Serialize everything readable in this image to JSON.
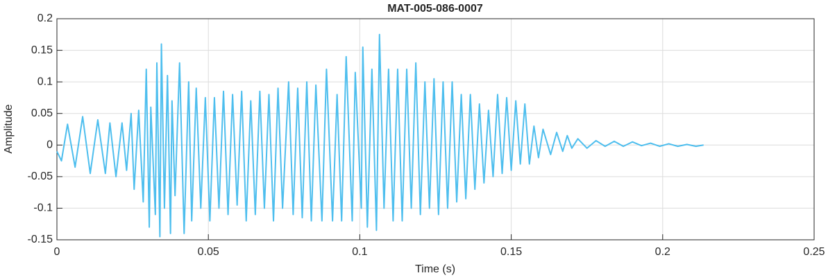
{
  "chart_data": {
    "type": "line",
    "title": "MAT-005-086-0007",
    "x_label": "Time (s)",
    "y_label": "Amplitude",
    "color": "#4dbeee",
    "grid": true,
    "xlim": [
      0,
      0.25
    ],
    "xticks": [
      0,
      0.05,
      0.1,
      0.15,
      0.2,
      0.25
    ],
    "ylim": [
      -0.15,
      0.2
    ],
    "yticks": [
      -0.15,
      -0.1,
      -0.05,
      0,
      0.05,
      0.1,
      0.15,
      0.2
    ],
    "x": [
      0.0,
      0.0015,
      0.0035,
      0.006,
      0.0085,
      0.011,
      0.0135,
      0.016,
      0.0175,
      0.0195,
      0.0215,
      0.023,
      0.0245,
      0.0255,
      0.027,
      0.0285,
      0.0295,
      0.0305,
      0.031,
      0.0325,
      0.033,
      0.034,
      0.0345,
      0.0355,
      0.0365,
      0.0375,
      0.038,
      0.039,
      0.0405,
      0.042,
      0.0435,
      0.0445,
      0.046,
      0.0475,
      0.049,
      0.0505,
      0.052,
      0.0535,
      0.055,
      0.0565,
      0.058,
      0.0595,
      0.061,
      0.0625,
      0.064,
      0.0655,
      0.067,
      0.0685,
      0.07,
      0.0715,
      0.073,
      0.0745,
      0.0765,
      0.078,
      0.0795,
      0.081,
      0.0825,
      0.084,
      0.0855,
      0.0875,
      0.089,
      0.091,
      0.0925,
      0.094,
      0.0955,
      0.0975,
      0.0985,
      0.1005,
      0.101,
      0.1025,
      0.104,
      0.1055,
      0.1065,
      0.108,
      0.1095,
      0.111,
      0.1125,
      0.114,
      0.1155,
      0.117,
      0.1185,
      0.12,
      0.1215,
      0.123,
      0.1245,
      0.126,
      0.1275,
      0.129,
      0.1305,
      0.132,
      0.1335,
      0.135,
      0.1365,
      0.138,
      0.1395,
      0.141,
      0.1425,
      0.144,
      0.1455,
      0.147,
      0.1485,
      0.15,
      0.1515,
      0.153,
      0.1545,
      0.156,
      0.1575,
      0.159,
      0.1605,
      0.163,
      0.165,
      0.167,
      0.1685,
      0.17,
      0.172,
      0.175,
      0.178,
      0.181,
      0.184,
      0.187,
      0.19,
      0.193,
      0.196,
      0.199,
      0.202,
      0.205,
      0.208,
      0.211,
      0.2135
    ],
    "values": [
      -0.01,
      -0.025,
      0.033,
      -0.035,
      0.045,
      -0.045,
      0.04,
      -0.045,
      0.035,
      -0.05,
      0.035,
      -0.04,
      0.05,
      -0.07,
      0.055,
      -0.09,
      0.12,
      -0.13,
      0.06,
      -0.11,
      0.13,
      -0.145,
      0.16,
      -0.1,
      0.11,
      -0.14,
      0.07,
      -0.08,
      0.13,
      -0.14,
      0.1,
      -0.12,
      0.09,
      -0.1,
      0.075,
      -0.12,
      0.075,
      -0.1,
      0.085,
      -0.11,
      0.08,
      -0.095,
      0.085,
      -0.12,
      0.07,
      -0.11,
      0.085,
      -0.1,
      0.08,
      -0.12,
      0.09,
      -0.1,
      0.1,
      -0.11,
      0.09,
      -0.115,
      0.1,
      -0.12,
      0.095,
      -0.12,
      0.12,
      -0.12,
      0.08,
      -0.12,
      0.14,
      -0.12,
      0.115,
      -0.1,
      0.155,
      -0.13,
      0.12,
      -0.135,
      0.175,
      -0.1,
      0.12,
      -0.12,
      0.12,
      -0.12,
      0.12,
      -0.1,
      0.13,
      -0.11,
      0.1,
      -0.1,
      0.105,
      -0.11,
      0.1,
      -0.1,
      0.1,
      -0.09,
      0.08,
      -0.085,
      0.08,
      -0.07,
      0.065,
      -0.06,
      0.055,
      -0.05,
      0.08,
      -0.045,
      0.075,
      -0.04,
      0.07,
      -0.03,
      0.065,
      -0.03,
      0.03,
      -0.02,
      0.025,
      -0.015,
      0.02,
      -0.01,
      0.015,
      -0.005,
      0.01,
      -0.005,
      0.007,
      -0.002,
      0.006,
      -0.002,
      0.005,
      -0.001,
      0.003,
      -0.002,
      0.002,
      -0.002,
      0.001,
      -0.002,
      0.0
    ]
  }
}
